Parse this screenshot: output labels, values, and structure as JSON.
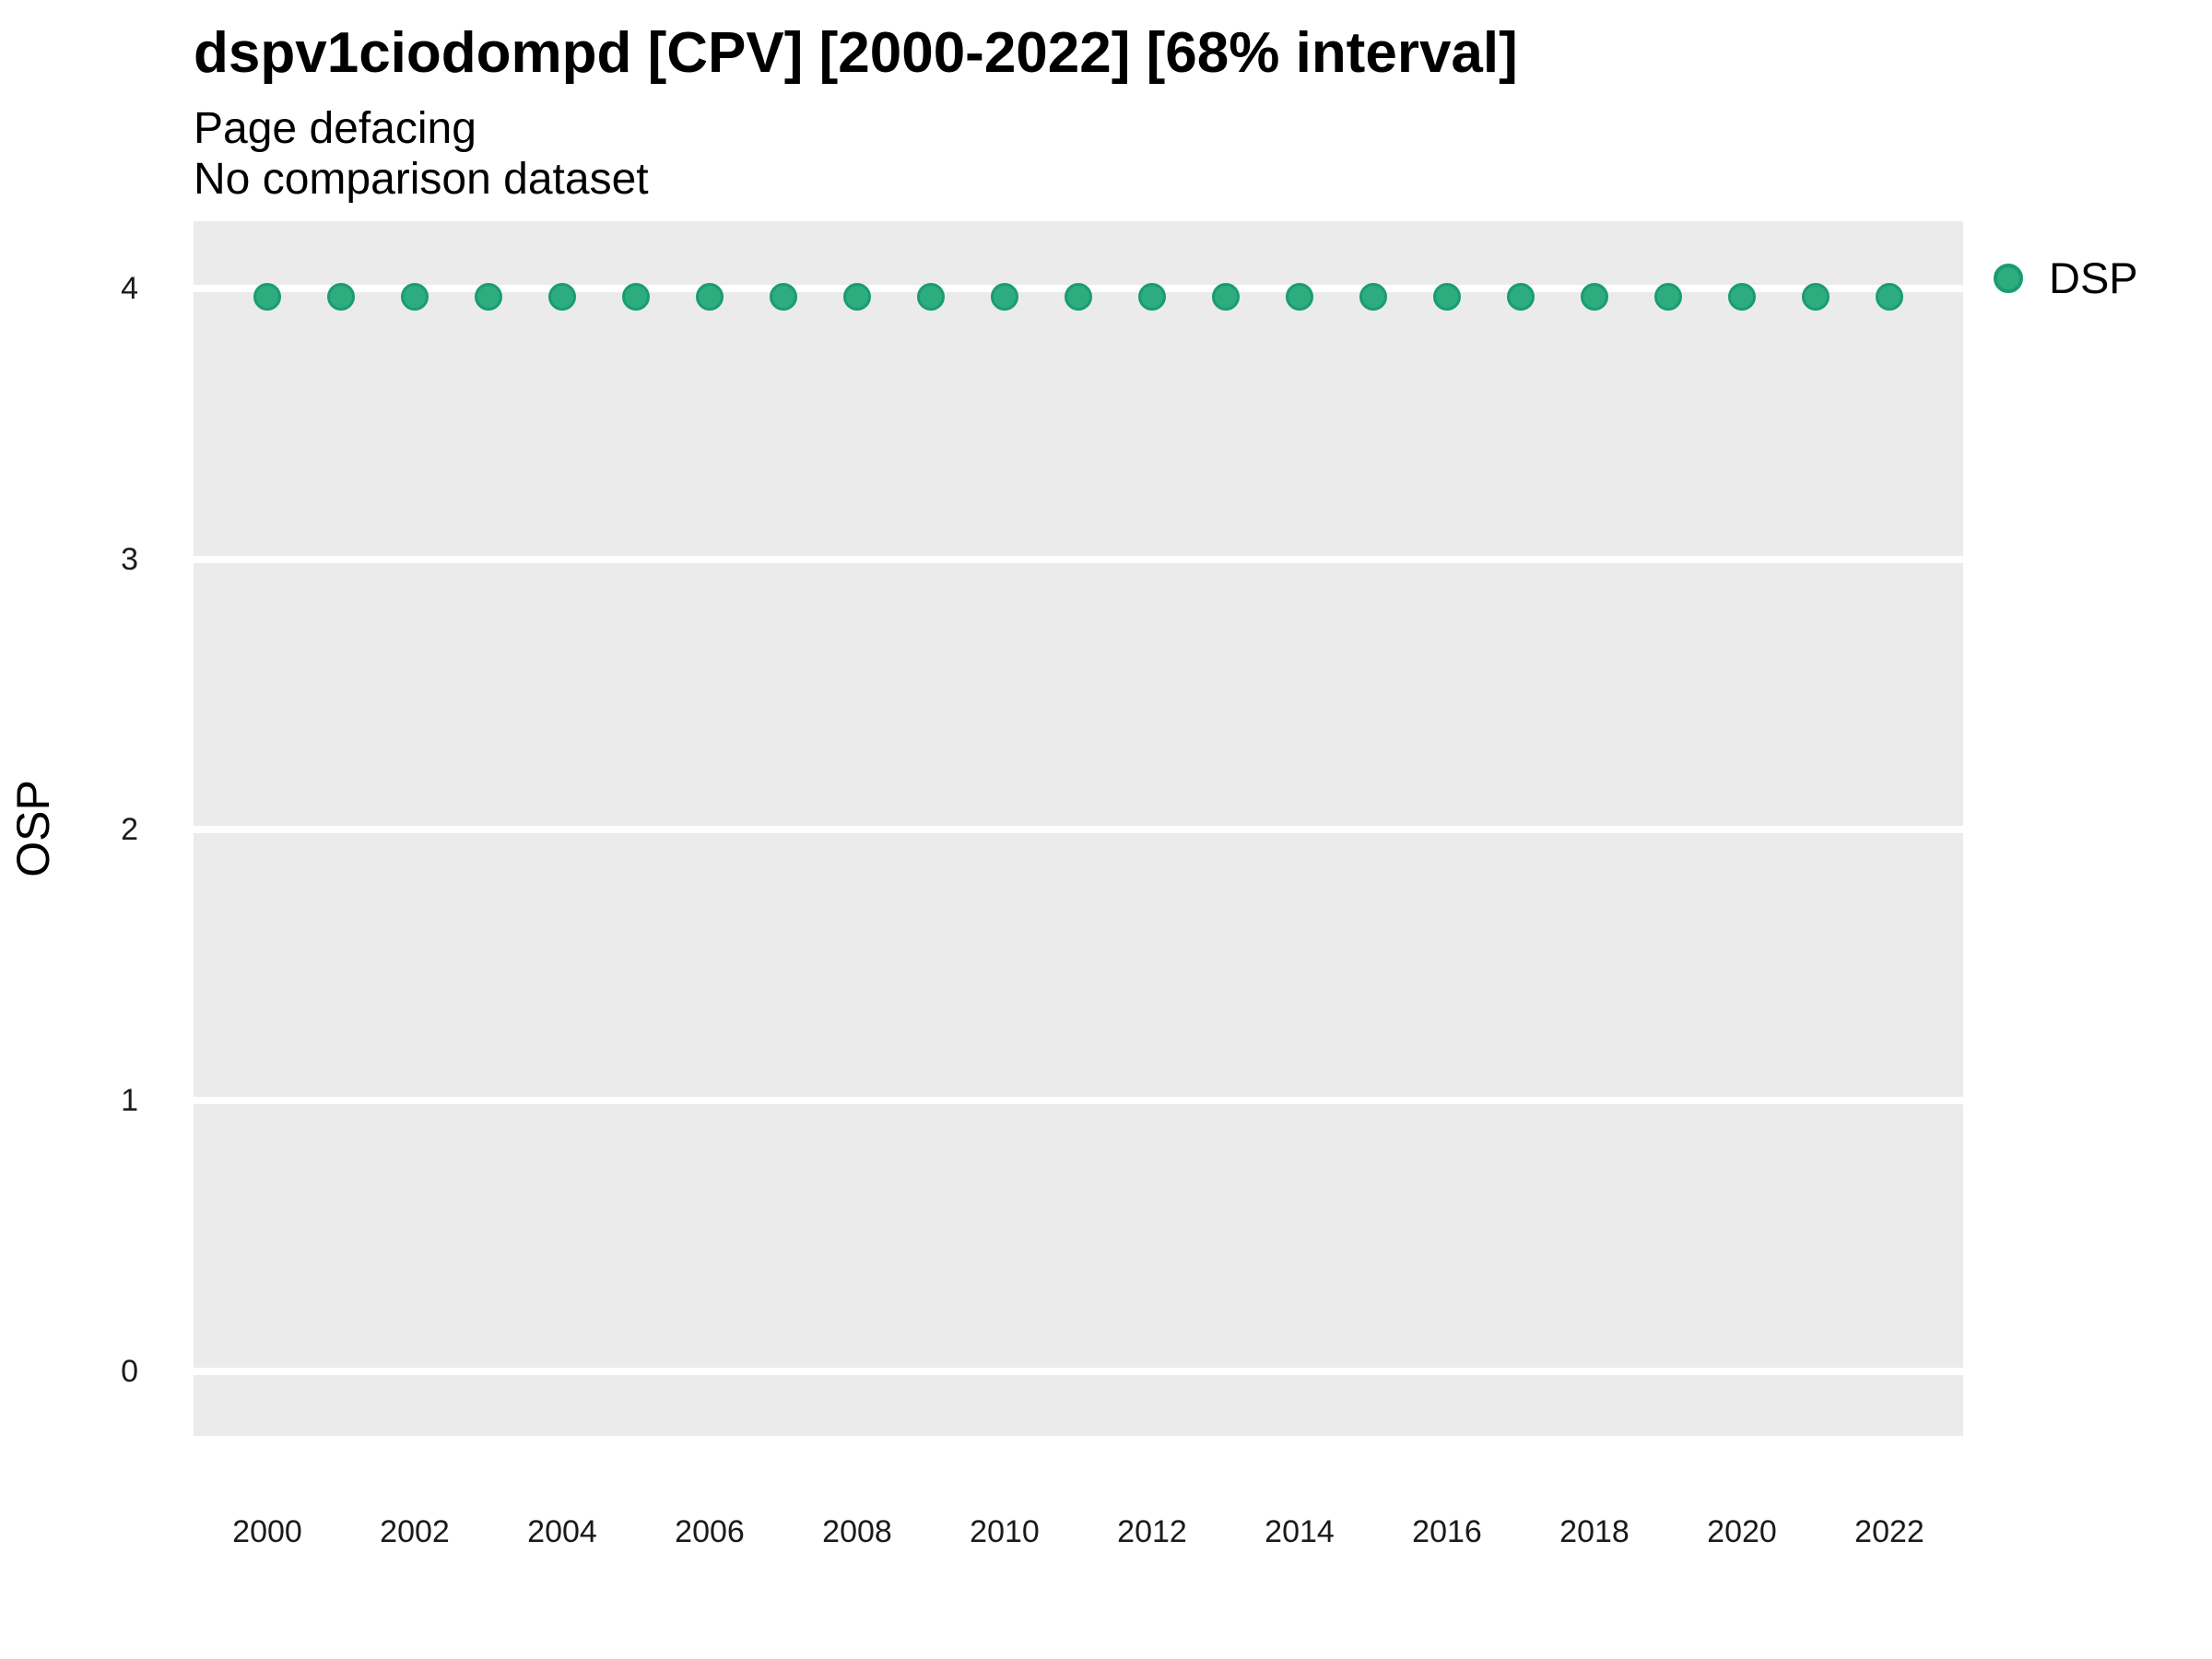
{
  "title": "dspv1ciodompd [CPV] [2000-2022] [68% interval]",
  "subtitle1": "Page defacing",
  "subtitle2": "No comparison dataset",
  "y_axis_title": "OSP",
  "legend": {
    "label": "DSP",
    "dot_color": "#2DAD7F",
    "dot_edge_color": "#1A9C71"
  },
  "colors": {
    "panel_background": "#EBEBEB",
    "gridline": "#FFFFFF",
    "point_fill": "#2DAD7F",
    "point_edge": "#1A9C71",
    "text": "#000000"
  },
  "chart_data": {
    "type": "scatter",
    "title": "dspv1ciodompd [CPV] [2000-2022] [68% interval]",
    "subtitle": "Page defacing",
    "note": "No comparison dataset",
    "xlabel": "",
    "ylabel": "OSP",
    "series": [
      {
        "name": "DSP",
        "x": [
          2000,
          2001,
          2002,
          2003,
          2004,
          2005,
          2006,
          2007,
          2008,
          2009,
          2010,
          2011,
          2012,
          2013,
          2014,
          2015,
          2016,
          2017,
          2018,
          2019,
          2020,
          2021,
          2022
        ],
        "y": [
          3.97,
          3.97,
          3.97,
          3.97,
          3.97,
          3.97,
          3.97,
          3.97,
          3.97,
          3.97,
          3.97,
          3.97,
          3.97,
          3.97,
          3.97,
          3.97,
          3.97,
          3.97,
          3.97,
          3.97,
          3.97,
          3.97,
          3.97
        ]
      }
    ],
    "xticks": [
      2000,
      2002,
      2004,
      2006,
      2008,
      2010,
      2012,
      2014,
      2016,
      2018,
      2020,
      2022
    ],
    "yticks": [
      0,
      1,
      2,
      3,
      4
    ],
    "xlim": [
      1999,
      2023
    ],
    "ylim": [
      -0.24,
      4.25
    ],
    "grid": "horizontal-major-white",
    "legend_position": "right"
  }
}
